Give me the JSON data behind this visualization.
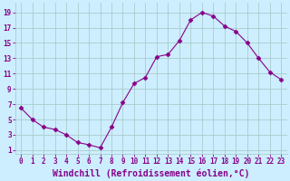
{
  "x": [
    0,
    1,
    2,
    3,
    4,
    5,
    6,
    7,
    8,
    9,
    10,
    11,
    12,
    13,
    14,
    15,
    16,
    17,
    18,
    19,
    20,
    21,
    22,
    23
  ],
  "y": [
    6.5,
    5.0,
    4.0,
    3.7,
    3.0,
    2.0,
    1.7,
    1.3,
    4.0,
    7.2,
    9.7,
    10.5,
    13.2,
    13.5,
    15.3,
    18.0,
    19.0,
    18.5,
    17.2,
    16.5,
    15.0,
    13.0,
    11.2,
    10.2
  ],
  "line_color": "#880088",
  "marker": "D",
  "marker_size": 2.5,
  "bg_color": "#cceeff",
  "grid_color": "#aacccc",
  "xlabel": "Windchill (Refroidissement éolien,°C)",
  "xlabel_color": "#880088",
  "ylabel_ticks": [
    1,
    3,
    5,
    7,
    9,
    11,
    13,
    15,
    17,
    19
  ],
  "xlim": [
    -0.5,
    23.5
  ],
  "ylim": [
    0.5,
    20.2
  ],
  "xtick_labels": [
    "0",
    "1",
    "2",
    "3",
    "4",
    "5",
    "6",
    "7",
    "8",
    "9",
    "10",
    "11",
    "12",
    "13",
    "14",
    "15",
    "16",
    "17",
    "18",
    "19",
    "20",
    "21",
    "22",
    "23"
  ],
  "tick_color": "#880088",
  "tick_fontsize": 5.5,
  "xlabel_fontsize": 7.0,
  "linewidth": 0.8
}
